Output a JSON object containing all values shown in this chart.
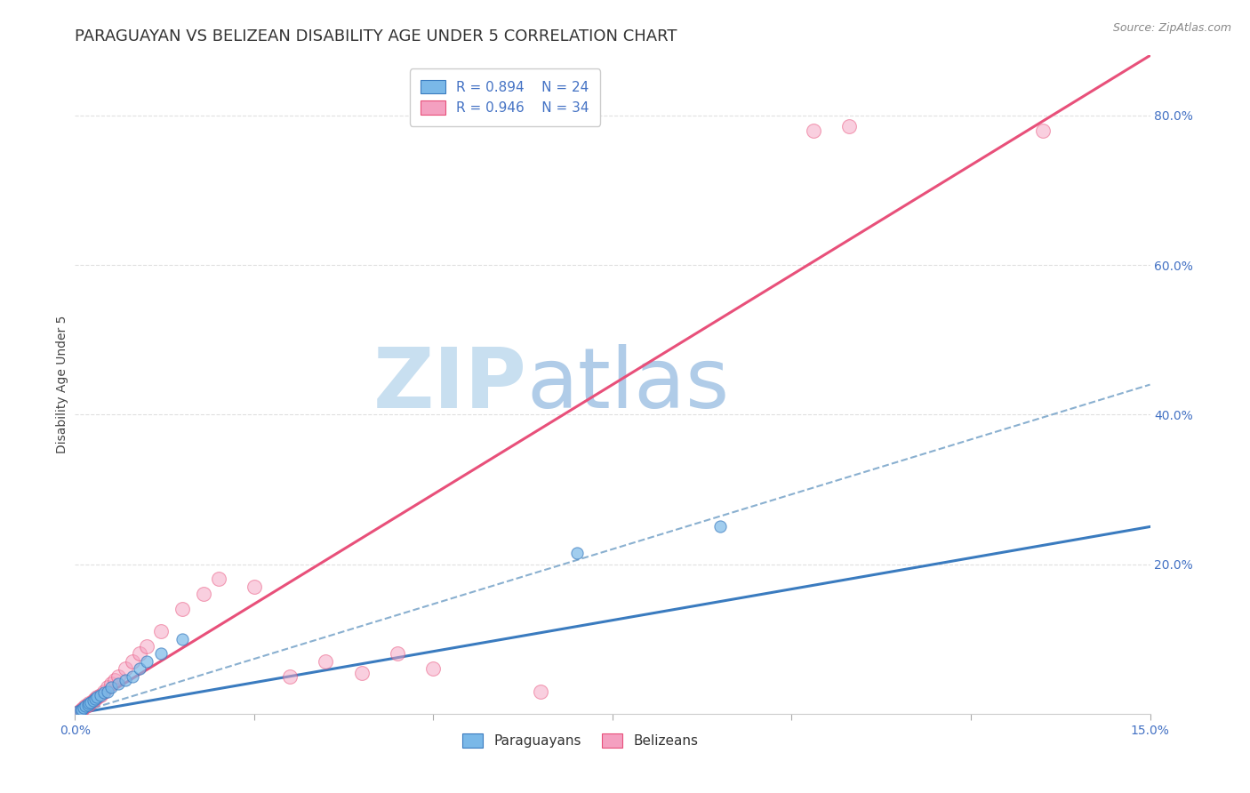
{
  "title": "PARAGUAYAN VS BELIZEAN DISABILITY AGE UNDER 5 CORRELATION CHART",
  "source_text": "Source: ZipAtlas.com",
  "xlim": [
    0.0,
    15.0
  ],
  "ylim": [
    0.0,
    88.0
  ],
  "ylabel": "Disability Age Under 5",
  "legend_blue_r": "R = 0.894",
  "legend_blue_n": "N = 24",
  "legend_pink_r": "R = 0.946",
  "legend_pink_n": "N = 34",
  "blue_scatter_color": "#7ab8e8",
  "blue_line_color": "#3a7bbf",
  "pink_scatter_color": "#f4a0c0",
  "pink_line_color": "#e8507a",
  "dashed_line_color": "#8ab0d0",
  "background_color": "#ffffff",
  "grid_color": "#e0e0e0",
  "watermark_zip_color": "#c5dff0",
  "watermark_atlas_color": "#b8d4ec",
  "title_fontsize": 13,
  "axis_label_fontsize": 10,
  "tick_fontsize": 10,
  "legend_fontsize": 11,
  "paraguayan_points_x": [
    0.05,
    0.08,
    0.1,
    0.12,
    0.15,
    0.18,
    0.2,
    0.22,
    0.25,
    0.28,
    0.3,
    0.35,
    0.4,
    0.45,
    0.5,
    0.6,
    0.7,
    0.8,
    0.9,
    1.0,
    1.2,
    1.5,
    7.0,
    9.0
  ],
  "paraguayan_points_y": [
    0.3,
    0.5,
    0.6,
    0.8,
    1.0,
    1.2,
    1.4,
    1.5,
    1.8,
    2.0,
    2.2,
    2.5,
    2.8,
    3.0,
    3.5,
    4.0,
    4.5,
    5.0,
    6.0,
    7.0,
    8.0,
    10.0,
    21.5,
    25.0
  ],
  "belizean_points_x": [
    0.05,
    0.08,
    0.1,
    0.12,
    0.15,
    0.18,
    0.2,
    0.25,
    0.28,
    0.3,
    0.35,
    0.4,
    0.45,
    0.5,
    0.55,
    0.6,
    0.7,
    0.8,
    0.9,
    1.0,
    1.2,
    1.5,
    1.8,
    2.0,
    2.5,
    3.0,
    3.5,
    4.0,
    4.5,
    5.0,
    6.5,
    10.3,
    10.8,
    13.5
  ],
  "belizean_points_y": [
    0.2,
    0.4,
    0.6,
    0.8,
    1.0,
    1.2,
    1.4,
    1.8,
    2.0,
    2.2,
    2.5,
    3.0,
    3.5,
    4.0,
    4.5,
    5.0,
    6.0,
    7.0,
    8.0,
    9.0,
    11.0,
    14.0,
    16.0,
    18.0,
    17.0,
    5.0,
    7.0,
    5.5,
    8.0,
    6.0,
    3.0,
    78.0,
    78.5,
    78.0
  ],
  "blue_line_x": [
    0.0,
    15.0
  ],
  "blue_line_y": [
    0.0,
    25.0
  ],
  "pink_line_x": [
    0.0,
    15.0
  ],
  "pink_line_y": [
    0.0,
    88.0
  ],
  "dashed_line_x": [
    0.0,
    15.0
  ],
  "dashed_line_y": [
    0.0,
    44.0
  ]
}
